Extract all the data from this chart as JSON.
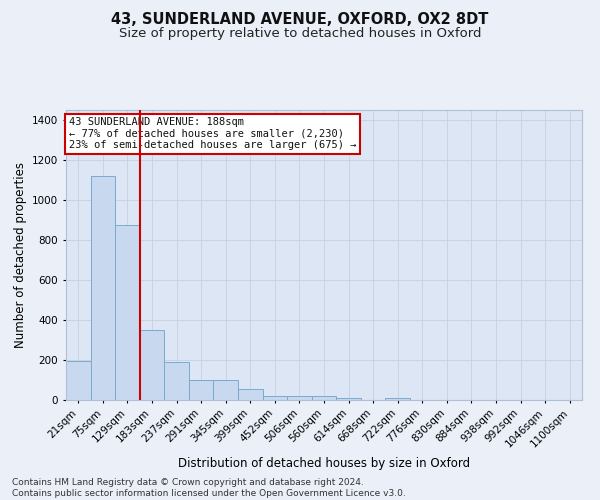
{
  "title1": "43, SUNDERLAND AVENUE, OXFORD, OX2 8DT",
  "title2": "Size of property relative to detached houses in Oxford",
  "xlabel": "Distribution of detached houses by size in Oxford",
  "ylabel": "Number of detached properties",
  "footnote": "Contains HM Land Registry data © Crown copyright and database right 2024.\nContains public sector information licensed under the Open Government Licence v3.0.",
  "bar_labels": [
    "21sqm",
    "75sqm",
    "129sqm",
    "183sqm",
    "237sqm",
    "291sqm",
    "345sqm",
    "399sqm",
    "452sqm",
    "506sqm",
    "560sqm",
    "614sqm",
    "668sqm",
    "722sqm",
    "776sqm",
    "830sqm",
    "884sqm",
    "938sqm",
    "992sqm",
    "1046sqm",
    "1100sqm"
  ],
  "bar_values": [
    195,
    1120,
    875,
    350,
    190,
    100,
    100,
    53,
    20,
    18,
    18,
    12,
    0,
    12,
    0,
    0,
    0,
    0,
    0,
    0,
    0
  ],
  "bar_color": "#c8d8ee",
  "bar_edgecolor": "#7aaad0",
  "vline_x": 2.5,
  "vline_color": "#cc0000",
  "annotation_title": "43 SUNDERLAND AVENUE: 188sqm",
  "annotation_line1": "← 77% of detached houses are smaller (2,230)",
  "annotation_line2": "23% of semi-detached houses are larger (675) →",
  "annotation_box_color": "#ffffff",
  "annotation_box_edgecolor": "#cc0000",
  "ylim": [
    0,
    1450
  ],
  "yticks": [
    0,
    200,
    400,
    600,
    800,
    1000,
    1200,
    1400
  ],
  "bg_color": "#eaeff8",
  "plot_bg_color": "#dde6f4",
  "grid_color": "#c8d0e0",
  "title1_fontsize": 10.5,
  "title2_fontsize": 9.5,
  "xlabel_fontsize": 8.5,
  "ylabel_fontsize": 8.5,
  "tick_fontsize": 7.5,
  "footnote_fontsize": 6.5
}
